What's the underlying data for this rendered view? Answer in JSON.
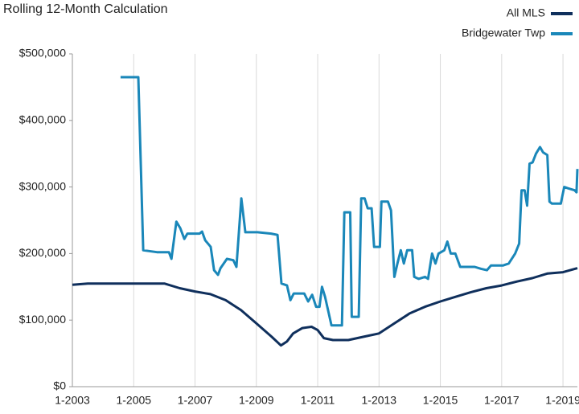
{
  "chart_data": {
    "type": "line",
    "title": "Rolling 12-Month Calculation",
    "xlim": [
      2003,
      2019.47
    ],
    "xticks": [
      {
        "value": 2003,
        "label": "1-2003"
      },
      {
        "value": 2005,
        "label": "1-2005"
      },
      {
        "value": 2007,
        "label": "1-2007"
      },
      {
        "value": 2009,
        "label": "1-2009"
      },
      {
        "value": 2011,
        "label": "1-2011"
      },
      {
        "value": 2013,
        "label": "1-2013"
      },
      {
        "value": 2015,
        "label": "1-2015"
      },
      {
        "value": 2017,
        "label": "1-2017"
      },
      {
        "value": 2019,
        "label": "1-2019"
      }
    ],
    "ylim": [
      0,
      500000
    ],
    "yticks": [
      {
        "value": 0,
        "label": "$0"
      },
      {
        "value": 100000,
        "label": "$100,000"
      },
      {
        "value": 200000,
        "label": "$200,000"
      },
      {
        "value": 300000,
        "label": "$300,000"
      },
      {
        "value": 400000,
        "label": "$400,000"
      },
      {
        "value": 500000,
        "label": "$500,000"
      }
    ],
    "grid": "x",
    "legend": "top-right",
    "series": [
      {
        "name": "All MLS",
        "color": "#0f2f5c",
        "x": [
          2003,
          2003.5,
          2004,
          2005,
          2006,
          2006.5,
          2007,
          2007.5,
          2008,
          2008.5,
          2009,
          2009.5,
          2009.8,
          2010,
          2010.2,
          2010.5,
          2010.8,
          2011,
          2011.2,
          2011.5,
          2012,
          2012.5,
          2013,
          2013.5,
          2014,
          2014.5,
          2015,
          2015.5,
          2016,
          2016.5,
          2017,
          2017.5,
          2018,
          2018.5,
          2019,
          2019.47
        ],
        "values": [
          153000,
          155000,
          155000,
          155000,
          155000,
          148000,
          143000,
          139000,
          130000,
          115000,
          95000,
          75000,
          62000,
          68000,
          80000,
          88000,
          90000,
          85000,
          73000,
          70000,
          70000,
          75000,
          80000,
          95000,
          110000,
          120000,
          128000,
          135000,
          142000,
          148000,
          152000,
          158000,
          163000,
          170000,
          172000,
          178000
        ]
      },
      {
        "name": "Bridgewater Twp",
        "color": "#1a87b9",
        "x": [
          2004.57,
          2005.15,
          2005.31,
          2005.76,
          2006.15,
          2006.23,
          2006.39,
          2006.52,
          2006.65,
          2006.75,
          2007.15,
          2007.23,
          2007.33,
          2007.51,
          2007.62,
          2007.75,
          2007.83,
          2008.04,
          2008.25,
          2008.35,
          2008.51,
          2008.64,
          2009.04,
          2009.48,
          2009.69,
          2009.82,
          2010.0,
          2010.11,
          2010.22,
          2010.56,
          2010.69,
          2010.82,
          2010.95,
          2011.06,
          2011.14,
          2011.24,
          2011.45,
          2011.79,
          2011.87,
          2012.06,
          2012.11,
          2012.34,
          2012.42,
          2012.53,
          2012.63,
          2012.76,
          2012.84,
          2013.03,
          2013.08,
          2013.29,
          2013.39,
          2013.5,
          2013.6,
          2013.71,
          2013.81,
          2013.92,
          2014.08,
          2014.15,
          2014.29,
          2014.5,
          2014.6,
          2014.73,
          2014.84,
          2014.94,
          2015.13,
          2015.23,
          2015.34,
          2015.49,
          2015.65,
          2016.12,
          2016.33,
          2016.52,
          2016.65,
          2017.04,
          2017.23,
          2017.44,
          2017.57,
          2017.65,
          2017.75,
          2017.83,
          2017.91,
          2018.01,
          2018.12,
          2018.25,
          2018.35,
          2018.49,
          2018.56,
          2018.64,
          2018.93,
          2019.04,
          2019.17,
          2019.38,
          2019.44,
          2019.47
        ],
        "values": [
          465000,
          465000,
          205000,
          202000,
          202000,
          192000,
          248000,
          238000,
          222000,
          230000,
          230000,
          233000,
          220000,
          210000,
          175000,
          168000,
          178000,
          192000,
          190000,
          180000,
          283000,
          232000,
          232000,
          230000,
          228000,
          155000,
          152000,
          130000,
          140000,
          140000,
          128000,
          138000,
          120000,
          120000,
          150000,
          135000,
          92000,
          92000,
          262000,
          262000,
          105000,
          105000,
          283000,
          283000,
          268000,
          268000,
          210000,
          210000,
          278000,
          278000,
          265000,
          165000,
          185000,
          205000,
          185000,
          205000,
          205000,
          165000,
          162000,
          165000,
          162000,
          200000,
          185000,
          200000,
          205000,
          218000,
          200000,
          200000,
          180000,
          180000,
          177000,
          175000,
          182000,
          182000,
          185000,
          200000,
          215000,
          295000,
          295000,
          272000,
          335000,
          337000,
          350000,
          360000,
          352000,
          348000,
          278000,
          275000,
          275000,
          300000,
          298000,
          295000,
          292000,
          327000
        ]
      }
    ]
  }
}
